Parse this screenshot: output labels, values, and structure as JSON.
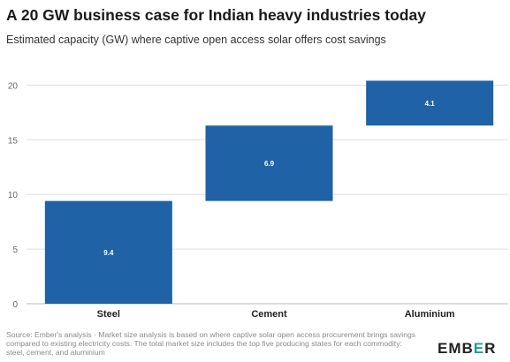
{
  "header": {
    "title": "A 20 GW business case for Indian heavy industries today",
    "subtitle": "Estimated capacity (GW) where captive open access solar offers cost savings"
  },
  "footer": {
    "source": "Source: Ember's analysis · Market size analysis is based on where captive solar open access procurement brings savings compared to existing electricity costs. The total market size includes the top five producing states for each commodity: steel, cement, and aluminium",
    "logo_prefix": "EMB",
    "logo_accent": "E",
    "logo_suffix": "R"
  },
  "colors": {
    "bar": "#1f62a5",
    "grid": "#dddddd",
    "axis_text": "#666666",
    "logo_accent": "#1c9e8f"
  },
  "chart_data": {
    "type": "bar",
    "subtype": "waterfall",
    "categories": [
      "Steel",
      "Cement",
      "Aluminium"
    ],
    "values": [
      9.4,
      6.9,
      4.1
    ],
    "bases": [
      0,
      9.4,
      16.3
    ],
    "data_labels": [
      "9.4",
      "6.9",
      "4.1"
    ],
    "ylim": [
      0,
      21
    ],
    "yticks": [
      0,
      5,
      10,
      15,
      20
    ],
    "grid": true,
    "legend": "none",
    "xlabel": "",
    "ylabel": ""
  }
}
